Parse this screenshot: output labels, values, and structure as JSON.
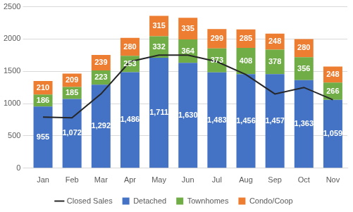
{
  "chart_data": {
    "type": "bar",
    "categories": [
      "Jan",
      "Feb",
      "Mar",
      "Apr",
      "May",
      "Jun",
      "Jul",
      "Aug",
      "Sep",
      "Oct",
      "Nov"
    ],
    "stacked": true,
    "ylim": [
      0,
      2500
    ],
    "yticks": [
      0,
      500,
      1000,
      1500,
      2000,
      2500
    ],
    "grid": true,
    "legend": "bottom",
    "series": [
      {
        "name": "Detached",
        "type": "bar",
        "color": "#4472c4",
        "values": [
          955,
          1072,
          1292,
          1486,
          1711,
          1630,
          1483,
          1456,
          1457,
          1363,
          1059
        ],
        "value_labels": [
          "955",
          "1,072",
          "1,292",
          "1,486",
          "1,711",
          "1,630",
          "1,483",
          "1,456",
          "1,457",
          "1,363",
          "1,059"
        ],
        "data_labels": true
      },
      {
        "name": "Townhomes",
        "type": "bar",
        "color": "#70ad47",
        "values": [
          186,
          185,
          223,
          253,
          332,
          364,
          373,
          408,
          378,
          356,
          266
        ],
        "data_labels": true
      },
      {
        "name": "Condo/Coop",
        "type": "bar",
        "color": "#ed7d31",
        "values": [
          210,
          209,
          239,
          280,
          315,
          335,
          299,
          285,
          248,
          280,
          248
        ],
        "data_labels": true
      },
      {
        "name": "Closed Sales",
        "type": "line",
        "color": "#262626",
        "marker": "none",
        "line_style": "solid",
        "values": [
          790,
          780,
          1150,
          1650,
          1750,
          1750,
          1650,
          1450,
          1150,
          1250,
          1060
        ],
        "data_labels": false
      }
    ]
  }
}
